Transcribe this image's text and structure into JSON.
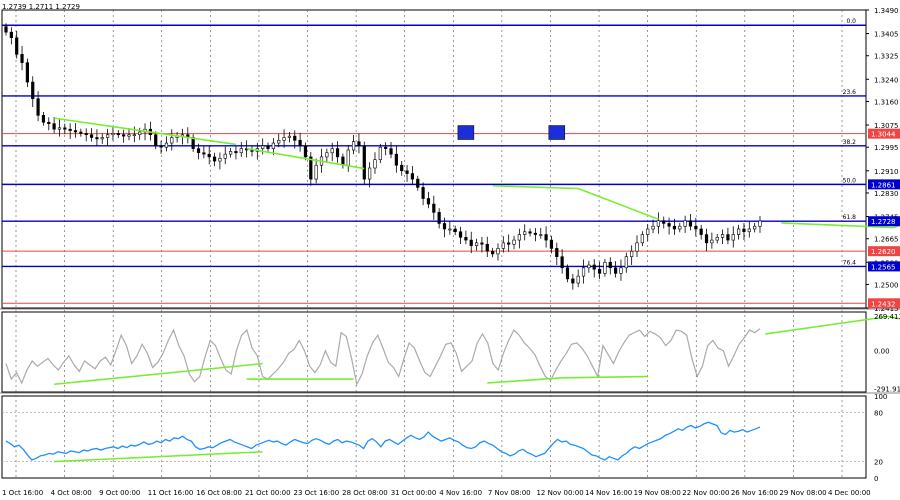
{
  "header": {
    "ohlc_text": "1.2739 1.2711 1.2729"
  },
  "chart_data": [
    {
      "type": "candlestick",
      "name": "price",
      "x_labels": [
        "1 Oct 16:00",
        "4 Oct 08:00",
        "9 Oct 00:00",
        "11 Oct 16:00",
        "16 Oct 08:00",
        "21 Oct 00:00",
        "23 Oct 16:00",
        "28 Oct 08:00",
        "31 Oct 00:00",
        "4 Nov 16:00",
        "7 Nov 08:00",
        "12 Nov 00:00",
        "14 Nov 16:00",
        "19 Nov 08:00",
        "22 Nov 00:00",
        "26 Nov 16:00",
        "29 Nov 08:00",
        "4 Dec 00:00"
      ],
      "y_ticks": [
        "1.3490",
        "1.3405",
        "1.3325",
        "1.3240",
        "1.3160",
        "1.3075",
        "1.2995",
        "1.2910",
        "1.2830",
        "1.2745",
        "1.2665",
        "1.2580",
        "1.2500",
        "1.2415"
      ],
      "ylim": [
        1.2415,
        1.349
      ],
      "close": [
        1.341,
        1.339,
        1.333,
        1.33,
        1.323,
        1.317,
        1.311,
        1.3085,
        1.308,
        1.306,
        1.3065,
        1.306,
        1.3055,
        1.305,
        1.3045,
        1.304,
        1.303,
        1.3025,
        1.303,
        1.304,
        1.3045,
        1.304,
        1.3035,
        1.304,
        1.304,
        1.305,
        1.306,
        1.304,
        1.3,
        1.2995,
        1.301,
        1.303,
        1.3035,
        1.304,
        1.303,
        1.299,
        1.2975,
        1.297,
        1.296,
        1.2945,
        1.2955,
        1.297,
        1.298,
        1.2975,
        1.299,
        1.2985,
        1.298,
        1.299,
        1.3,
        1.299,
        1.301,
        1.302,
        1.303,
        1.3035,
        1.302,
        1.3,
        1.296,
        1.288,
        1.293,
        1.296,
        1.2975,
        1.299,
        1.296,
        1.293,
        1.2985,
        1.3015,
        1.3,
        1.288,
        1.292,
        1.295,
        1.2995,
        1.299,
        1.297,
        1.293,
        1.291,
        1.29,
        1.288,
        1.285,
        1.281,
        1.279,
        1.276,
        1.272,
        1.27,
        1.27,
        1.269,
        1.267,
        1.266,
        1.264,
        1.265,
        1.2645,
        1.262,
        1.261,
        1.263,
        1.265,
        1.2645,
        1.266,
        1.268,
        1.269,
        1.2685,
        1.268,
        1.268,
        1.266,
        1.263,
        1.26,
        1.256,
        1.252,
        1.2505,
        1.253,
        1.256,
        1.257,
        1.2555,
        1.254,
        1.258,
        1.256,
        1.254,
        1.256,
        1.26,
        1.262,
        1.265,
        1.268,
        1.27,
        1.271,
        1.273,
        1.272,
        1.271,
        1.27,
        1.271,
        1.273,
        1.271,
        1.27,
        1.268,
        1.265,
        1.266,
        1.267,
        1.268,
        1.266,
        1.268,
        1.27,
        1.269,
        1.27,
        1.271,
        1.2729
      ],
      "horizontal_levels": [
        {
          "value": 1.3435,
          "color": "#0000cc",
          "label": "0.0",
          "tag": ""
        },
        {
          "value": 1.318,
          "color": "#0000cc",
          "label": "23.6",
          "tag": ""
        },
        {
          "value": 1.3044,
          "color": "#ee4444",
          "label": "",
          "tag": "1.3044"
        },
        {
          "value": 1.3,
          "color": "#0000cc",
          "label": "38.2",
          "tag": ""
        },
        {
          "value": 1.2861,
          "color": "#0000cc",
          "label": "50.0",
          "tag": "1.2861"
        },
        {
          "value": 1.2728,
          "color": "#0000cc",
          "label": "61.8",
          "tag": "1.2728"
        },
        {
          "value": 1.262,
          "color": "#ee4444",
          "label": "",
          "tag": "1.2620"
        },
        {
          "value": 1.2565,
          "color": "#0000cc",
          "label": "76.4",
          "tag": "1.2565"
        },
        {
          "value": 1.2432,
          "color": "#ee4444",
          "label": "",
          "tag": "1.2432"
        }
      ],
      "trend_lines": [
        {
          "from": [
            9,
            1.31
          ],
          "to": [
            43,
            1.3005
          ]
        },
        {
          "from": [
            45,
            1.299
          ],
          "to": [
            67,
            1.2918
          ]
        },
        {
          "from": [
            91,
            1.2856
          ],
          "to": [
            107,
            1.2846
          ]
        },
        {
          "from": [
            107,
            1.2846
          ],
          "to": [
            122,
            1.2735
          ]
        },
        {
          "from": [
            145,
            1.2722
          ],
          "to": [
            166,
            1.2705
          ]
        },
        {
          "from": [
            166,
            1.2705
          ],
          "to": [
            172,
            1.2752
          ]
        }
      ],
      "markers": [
        {
          "index": 86,
          "value": 1.3048,
          "color": "#1b2fd6"
        },
        {
          "index": 103,
          "value": 1.3048,
          "color": "#1b2fd6"
        }
      ],
      "colors": {
        "candle": "#000000",
        "trend": "#77ee33",
        "level_blue": "#0000cc",
        "level_red": "#ee4444"
      }
    },
    {
      "type": "line",
      "name": "cci",
      "y_ticks": [
        "269.4111",
        "0.00",
        "-291.9114"
      ],
      "ylim": [
        -320,
        300
      ],
      "color": "#aaaaaa",
      "values": [
        -100,
        -220,
        -170,
        -250,
        -150,
        -80,
        -120,
        -90,
        -60,
        -110,
        -150,
        -90,
        -40,
        -110,
        -160,
        -80,
        -110,
        -140,
        -80,
        -50,
        -110,
        0,
        120,
        40,
        -100,
        -40,
        50,
        -20,
        -130,
        -90,
        -20,
        80,
        160,
        40,
        -40,
        -180,
        -240,
        -200,
        -50,
        80,
        40,
        -60,
        -150,
        -180,
        0,
        120,
        160,
        20,
        -40,
        -200,
        -220,
        -180,
        -140,
        -90,
        -20,
        10,
        80,
        0,
        -120,
        -170,
        -110,
        0,
        -90,
        -120,
        140,
        110,
        -60,
        -260,
        -180,
        -40,
        60,
        120,
        20,
        -90,
        -130,
        -200,
        -60,
        60,
        20,
        -80,
        -170,
        -200,
        -120,
        -40,
        50,
        60,
        -20,
        -160,
        -120,
        -80,
        60,
        130,
        60,
        -100,
        -150,
        -20,
        80,
        160,
        120,
        60,
        20,
        -30,
        -120,
        -200,
        -230,
        -150,
        -80,
        -20,
        50,
        60,
        20,
        -40,
        -120,
        -200,
        40,
        -30,
        -100,
        -10,
        60,
        120,
        140,
        160,
        110,
        150,
        130,
        100,
        40,
        80,
        160,
        150,
        120,
        -60,
        -200,
        -120,
        40,
        80,
        20,
        0,
        -120,
        -40,
        50,
        100,
        160,
        140,
        170
      ],
      "trend_lines": [
        {
          "from": [
            9,
            -260
          ],
          "to": [
            48,
            -100
          ]
        },
        {
          "from": [
            45,
            -220
          ],
          "to": [
            65,
            -220
          ]
        },
        {
          "from": [
            90,
            -250
          ],
          "to": [
            104,
            -210
          ]
        },
        {
          "from": [
            104,
            -210
          ],
          "to": [
            120,
            -200
          ]
        },
        {
          "from": [
            142,
            130
          ],
          "to": [
            165,
            265
          ]
        },
        {
          "from": [
            165,
            265
          ],
          "to": [
            174,
            190
          ]
        }
      ],
      "trend_color": "#77ee33"
    },
    {
      "type": "line",
      "name": "rsi",
      "y_ticks": [
        "100",
        "80",
        "20",
        "0"
      ],
      "ylim": [
        0,
        100
      ],
      "color": "#1e90ff",
      "levels": [
        80,
        20
      ],
      "values": [
        45,
        42,
        38,
        40,
        35,
        28,
        22,
        24,
        27,
        28,
        30,
        29,
        32,
        31,
        30,
        33,
        32,
        31,
        34,
        33,
        35,
        36,
        34,
        36,
        37,
        38,
        36,
        39,
        37,
        40,
        39,
        41,
        44,
        41,
        42,
        45,
        43,
        47,
        45,
        49,
        48,
        51,
        47,
        45,
        38,
        35,
        36,
        38,
        37,
        40,
        43,
        45,
        47,
        44,
        42,
        40,
        38,
        36,
        40,
        42,
        44,
        46,
        44,
        45,
        42,
        40,
        44,
        47,
        45,
        43,
        42,
        46,
        48,
        46,
        43,
        41,
        45,
        47,
        43,
        45,
        44,
        42,
        40,
        36,
        45,
        48,
        44,
        38,
        45,
        47,
        44,
        41,
        45,
        49,
        52,
        49,
        47,
        50,
        56,
        51,
        48,
        45,
        47,
        49,
        46,
        44,
        40,
        37,
        36,
        38,
        43,
        45,
        42,
        40,
        36,
        32,
        30,
        27,
        29,
        33,
        35,
        31,
        29,
        26,
        28,
        30,
        36,
        42,
        47,
        44,
        45,
        41,
        40,
        38,
        36,
        32,
        28,
        27,
        24,
        22,
        26,
        24,
        22,
        27,
        30,
        35,
        38,
        36,
        39,
        42,
        44,
        46,
        48,
        52,
        54,
        57,
        60,
        58,
        62,
        64,
        61,
        63,
        66,
        68,
        66,
        64,
        55,
        53,
        58,
        56,
        57,
        59,
        56,
        58,
        60,
        62
      ]
    }
  ]
}
